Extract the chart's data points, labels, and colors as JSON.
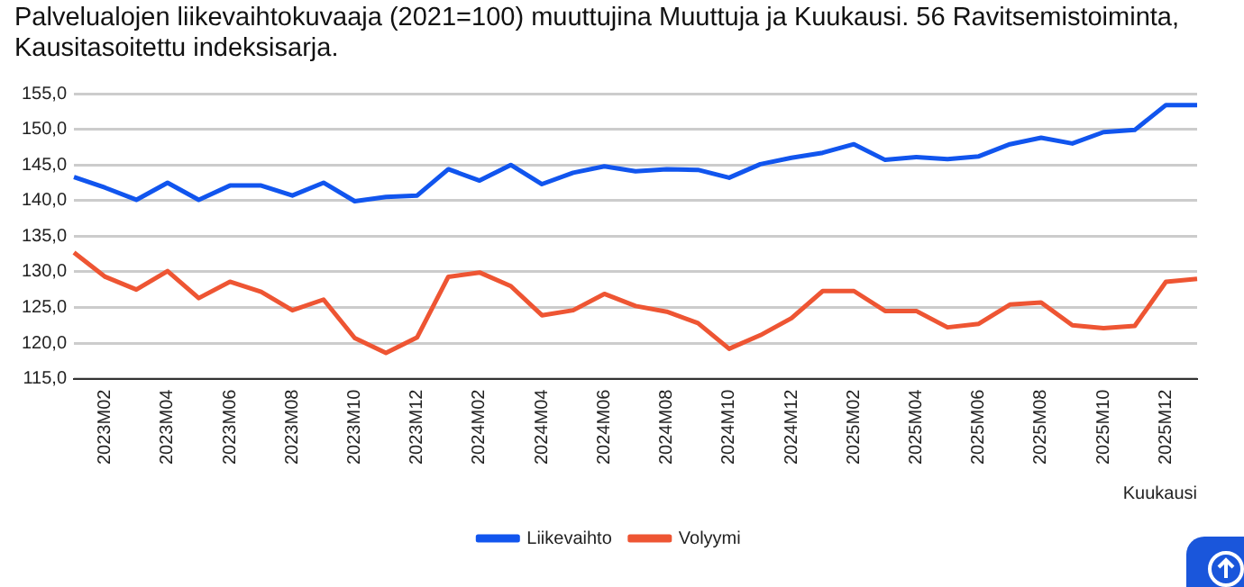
{
  "chart_data": {
    "type": "line",
    "title": "Palvelualojen liikevaihtokuvaaja (2021=100) muuttujina Muuttuja ja Kuukausi. 56 Ravitsemistoiminta, Kausitasoitettu indeksisarja.",
    "xlabel": "Kuukausi",
    "categories": [
      null,
      "2023M02",
      null,
      "2023M04",
      null,
      "2023M06",
      null,
      "2023M08",
      null,
      "2023M10",
      null,
      "2023M12",
      null,
      "2024M02",
      null,
      "2024M04",
      null,
      "2024M06",
      null,
      "2024M08",
      null,
      "2024M10",
      null,
      "2024M12",
      null,
      "2025M02",
      null,
      "2025M04",
      null,
      "2025M06",
      null,
      "2025M08",
      null,
      "2025M10",
      null,
      "2025M12",
      null
    ],
    "series": [
      {
        "name": "Liikevaihto",
        "color": "#1155ee",
        "values": [
          143.3,
          141.8,
          140.1,
          142.5,
          140.1,
          142.1,
          142.1,
          140.7,
          142.5,
          139.9,
          140.5,
          140.7,
          144.4,
          142.8,
          145.0,
          142.3,
          143.9,
          144.8,
          144.1,
          144.4,
          144.3,
          143.2,
          145.1,
          146.0,
          146.7,
          147.9,
          145.7,
          146.1,
          145.8,
          146.2,
          147.9,
          148.8,
          148.0,
          149.6,
          149.9,
          153.4,
          153.4
        ]
      },
      {
        "name": "Volyymi",
        "color": "#ee5533",
        "values": [
          132.7,
          129.3,
          127.5,
          130.1,
          126.3,
          128.6,
          127.2,
          124.6,
          126.1,
          120.7,
          118.6,
          120.8,
          129.3,
          129.9,
          128.0,
          123.9,
          124.6,
          126.9,
          125.2,
          124.4,
          122.8,
          119.2,
          121.1,
          123.5,
          127.3,
          127.3,
          124.5,
          124.5,
          122.2,
          122.7,
          125.4,
          125.7,
          122.5,
          122.1,
          122.4,
          128.6,
          129.0
        ]
      }
    ],
    "ylim": [
      115,
      155
    ],
    "yticks": [
      {
        "value": 115,
        "label": "115,0"
      },
      {
        "value": 120,
        "label": "120,0"
      },
      {
        "value": 125,
        "label": "125,0"
      },
      {
        "value": 130,
        "label": "130,0"
      },
      {
        "value": 135,
        "label": "135,0"
      },
      {
        "value": 140,
        "label": "140,0"
      },
      {
        "value": 145,
        "label": "145,0"
      },
      {
        "value": 150,
        "label": "150,0"
      },
      {
        "value": 155,
        "label": "155,0"
      }
    ],
    "grid": "y",
    "legend": "bottom",
    "marker": "none",
    "line_style": "solid"
  }
}
